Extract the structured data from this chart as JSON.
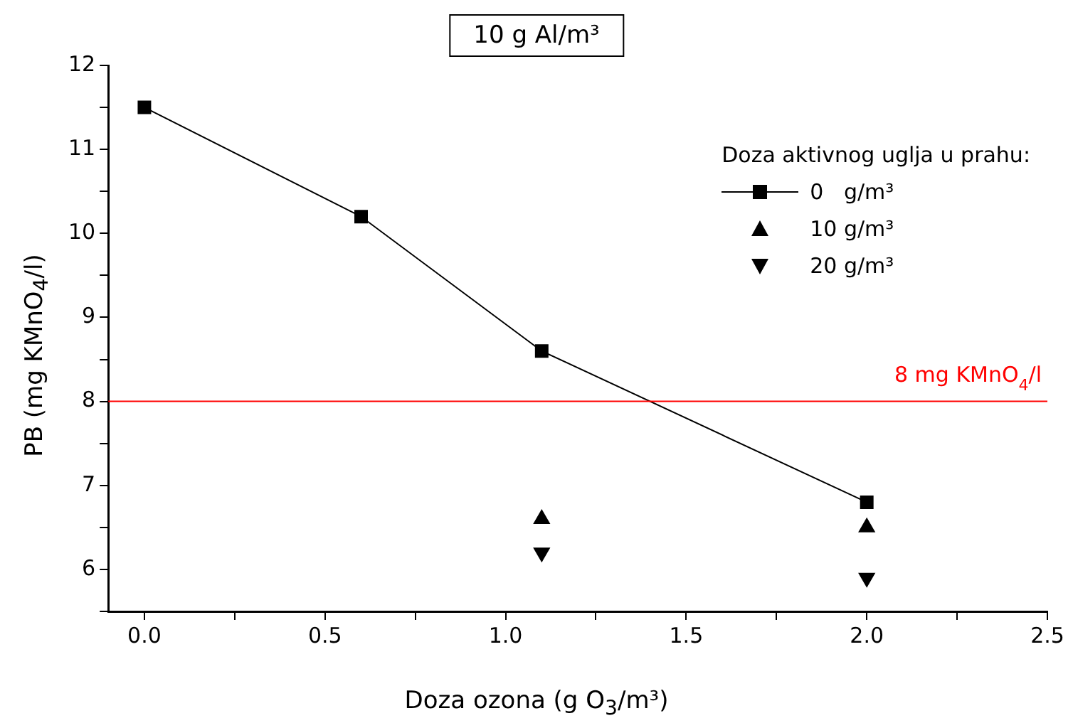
{
  "chart_data": {
    "type": "line",
    "title": "10 g Al/m³",
    "xlabel": "Doza ozona (g O$_{3}$/m³)",
    "ylabel": "PB (mg KMnO$_{4}$/l)",
    "legend_title": "Doza aktivnog uglja u prahu:",
    "x": [
      0,
      0.6,
      1.1,
      2
    ],
    "series": [
      {
        "name": "0   g/m³",
        "type": "line",
        "marker": "square",
        "color": "#000000",
        "values": [
          11.5,
          10.2,
          8.6,
          6.8
        ]
      },
      {
        "name": "10 g/m³",
        "type": "scatter",
        "marker": "triangle",
        "color": "#000000",
        "values": [
          null,
          null,
          6.6,
          6.5
        ]
      },
      {
        "name": "20 g/m³",
        "type": "scatter",
        "marker": "triangle-down",
        "color": "#000000",
        "values": [
          null,
          null,
          6.2,
          5.9
        ]
      }
    ],
    "xlim": [
      -0.1,
      2.5
    ],
    "ylim": [
      5.5,
      12
    ],
    "xticks": [
      {
        "value": 0,
        "label": "0.0"
      },
      {
        "value": 0.25,
        "label": null
      },
      {
        "value": 0.5,
        "label": "0.5"
      },
      {
        "value": 0.75,
        "label": null
      },
      {
        "value": 1,
        "label": "1.0"
      },
      {
        "value": 1.25,
        "label": null
      },
      {
        "value": 1.5,
        "label": "1.5"
      },
      {
        "value": 1.75,
        "label": null
      },
      {
        "value": 2,
        "label": "2.0"
      },
      {
        "value": 2.25,
        "label": null
      },
      {
        "value": 2.5,
        "label": "2.5"
      }
    ],
    "yticks": [
      {
        "value": 5.5,
        "label": null
      },
      6,
      {
        "value": 6.5,
        "label": null
      },
      7,
      {
        "value": 7.5,
        "label": null
      },
      8,
      {
        "value": 8.5,
        "label": null
      },
      9,
      {
        "value": 9.5,
        "label": null
      },
      10,
      {
        "value": 10.5,
        "label": null
      },
      11,
      {
        "value": 11.5,
        "label": null
      },
      12
    ],
    "ref_lines": [
      {
        "axis": "y",
        "value": 8,
        "label": "8 mg KMnO$_{4}$/l",
        "color": "#ff0000"
      }
    ],
    "grid": false,
    "legend": "top right",
    "line_style": "solid"
  }
}
